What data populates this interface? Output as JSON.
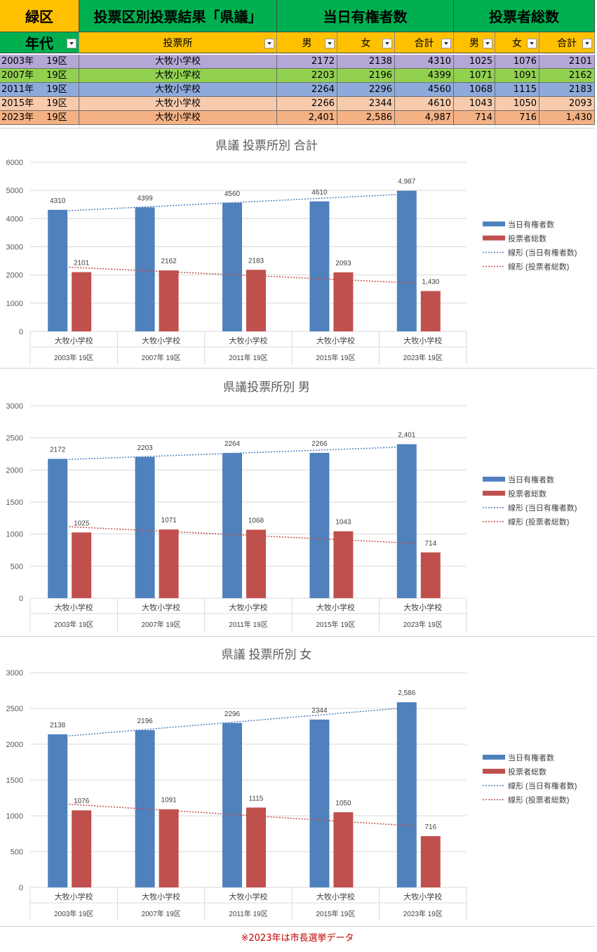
{
  "table": {
    "ward": "緑区",
    "title": "投票区別投票結果「県議」",
    "registered_header": "当日有権者数",
    "voters_header": "投票者総数",
    "age_header": "年代",
    "station_header": "投票所",
    "male": "男",
    "female": "女",
    "total": "合計",
    "rows": [
      {
        "year": "2003年",
        "district": "19区",
        "station": "大牧小学校",
        "r_m": "2172",
        "r_f": "2138",
        "r_t": "4310",
        "v_m": "1025",
        "v_f": "1076",
        "v_t": "2101",
        "color": "#b4a7d6"
      },
      {
        "year": "2007年",
        "district": "19区",
        "station": "大牧小学校",
        "r_m": "2203",
        "r_f": "2196",
        "r_t": "4399",
        "v_m": "1071",
        "v_f": "1091",
        "v_t": "2162",
        "color": "#92d050"
      },
      {
        "year": "2011年",
        "district": "19区",
        "station": "大牧小学校",
        "r_m": "2264",
        "r_f": "2296",
        "r_t": "4560",
        "v_m": "1068",
        "v_f": "1115",
        "v_t": "2183",
        "color": "#8eaadb"
      },
      {
        "year": "2015年",
        "district": "19区",
        "station": "大牧小学校",
        "r_m": "2266",
        "r_f": "2344",
        "r_t": "4610",
        "v_m": "1043",
        "v_f": "1050",
        "v_t": "2093",
        "color": "#f8cbad"
      },
      {
        "year": "2023年",
        "district": "19区",
        "station": "大牧小学校",
        "r_m": "2,401",
        "r_f": "2,586",
        "r_t": "4,987",
        "v_m": "714",
        "v_f": "716",
        "v_t": "1,430",
        "color": "#f4b183"
      }
    ]
  },
  "colors": {
    "registered": "#4f81bd",
    "voters": "#c0504d",
    "header_green": "#00b050",
    "header_yellow": "#ffc000"
  },
  "chart_data": [
    {
      "type": "bar",
      "title": "県議  投票所別  合計",
      "categories": [
        "大牧小学校",
        "大牧小学校",
        "大牧小学校",
        "大牧小学校",
        "大牧小学校"
      ],
      "category_groups": [
        "2003年    19区",
        "2007年    19区",
        "2011年    19区",
        "2015年    19区",
        "2023年    19区"
      ],
      "series": [
        {
          "name": "当日有権者数",
          "values": [
            4310,
            4399,
            4560,
            4610,
            4987
          ],
          "labels": [
            "4310",
            "4399",
            "4560",
            "4610",
            "4,987"
          ]
        },
        {
          "name": "投票者総数",
          "values": [
            2101,
            2162,
            2183,
            2093,
            1430
          ],
          "labels": [
            "2101",
            "2162",
            "2183",
            "2093",
            "1,430"
          ]
        }
      ],
      "trendlines": [
        "線形 (当日有権者数)",
        "線形 (投票者総数)"
      ],
      "yticks": [
        "0",
        "1000",
        "2000",
        "3000",
        "4000",
        "5000",
        "6000"
      ],
      "ylim": [
        0,
        6000
      ],
      "legend": "right",
      "grid": true
    },
    {
      "type": "bar",
      "title": "県議投票所別  男",
      "categories": [
        "大牧小学校",
        "大牧小学校",
        "大牧小学校",
        "大牧小学校",
        "大牧小学校"
      ],
      "category_groups": [
        "2003年    19区",
        "2007年    19区",
        "2011年    19区",
        "2015年    19区",
        "2023年    19区"
      ],
      "series": [
        {
          "name": "当日有権者数",
          "values": [
            2172,
            2203,
            2264,
            2266,
            2401
          ],
          "labels": [
            "2172",
            "2203",
            "2264",
            "2266",
            "2,401"
          ]
        },
        {
          "name": "投票者総数",
          "values": [
            1025,
            1071,
            1068,
            1043,
            714
          ],
          "labels": [
            "1025",
            "1071",
            "1068",
            "1043",
            "714"
          ]
        }
      ],
      "trendlines": [
        "線形 (当日有権者数)",
        "線形 (投票者総数)"
      ],
      "yticks": [
        "0",
        "500",
        "1000",
        "1500",
        "2000",
        "2500",
        "3000"
      ],
      "ylim": [
        0,
        3000
      ],
      "legend": "right",
      "grid": true
    },
    {
      "type": "bar",
      "title": "県議  投票所別  女",
      "categories": [
        "大牧小学校",
        "大牧小学校",
        "大牧小学校",
        "大牧小学校",
        "大牧小学校"
      ],
      "category_groups": [
        "2003年    19区",
        "2007年    19区",
        "2011年    19区",
        "2015年    19区",
        "2023年    19区"
      ],
      "series": [
        {
          "name": "当日有権者数",
          "values": [
            2138,
            2196,
            2296,
            2344,
            2586
          ],
          "labels": [
            "2138",
            "2196",
            "2296",
            "2344",
            "2,586"
          ]
        },
        {
          "name": "投票者総数",
          "values": [
            1076,
            1091,
            1115,
            1050,
            716
          ],
          "labels": [
            "1076",
            "1091",
            "1115",
            "1050",
            "716"
          ]
        }
      ],
      "trendlines": [
        "線形 (当日有権者数)",
        "線形 (投票者総数)"
      ],
      "yticks": [
        "0",
        "500",
        "1000",
        "1500",
        "2000",
        "2500",
        "3000"
      ],
      "ylim": [
        0,
        3000
      ],
      "legend": "right",
      "grid": true
    }
  ],
  "footer": "※2023年は市長選挙データ"
}
